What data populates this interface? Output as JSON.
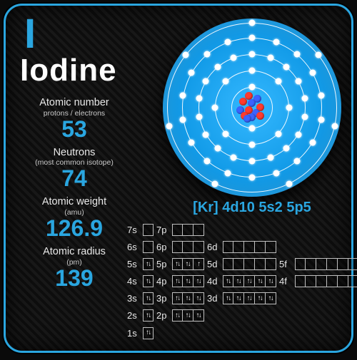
{
  "element": {
    "symbol": "I",
    "name": "Iodine",
    "electron_config_short": "[Kr] 4d10 5s2 5p5"
  },
  "colors": {
    "accent": "#2aa6e0",
    "text": "#ffffff",
    "disc_inner": "#34b8ff",
    "disc_outer": "#0e7fc0",
    "nucleon_a": "#ff3b2f",
    "nucleon_b": "#3b63ff"
  },
  "stats": [
    {
      "label": "Atomic number",
      "sub": "protons / electrons",
      "value": "53"
    },
    {
      "label": "Neutrons",
      "sub": "(most common isotope)",
      "value": "74"
    },
    {
      "label": "Atomic weight",
      "sub": "(amu)",
      "value": "126.9"
    },
    {
      "label": "Atomic radius",
      "sub": "(pm)",
      "value": "139"
    }
  ],
  "atom": {
    "shells": [
      {
        "radius": 29,
        "electrons": 2
      },
      {
        "radius": 52,
        "electrons": 8
      },
      {
        "radius": 75,
        "electrons": 18
      },
      {
        "radius": 98,
        "electrons": 18
      },
      {
        "radius": 119,
        "electrons": 7
      }
    ]
  },
  "orbitals": [
    [
      {
        "l": "7s",
        "n": 1,
        "f": 0
      },
      {
        "l": "7p",
        "n": 3,
        "f": 0
      }
    ],
    [
      {
        "l": "6s",
        "n": 1,
        "f": 0
      },
      {
        "l": "6p",
        "n": 3,
        "f": 0
      },
      {
        "l": "6d",
        "n": 5,
        "f": 0
      }
    ],
    [
      {
        "l": "5s",
        "n": 1,
        "f": 2
      },
      {
        "l": "5p",
        "n": 3,
        "f": 5
      },
      {
        "l": "5d",
        "n": 5,
        "f": 0
      },
      {
        "l": "5f",
        "n": 7,
        "f": 0
      }
    ],
    [
      {
        "l": "4s",
        "n": 1,
        "f": 2
      },
      {
        "l": "4p",
        "n": 3,
        "f": 6
      },
      {
        "l": "4d",
        "n": 5,
        "f": 10
      },
      {
        "l": "4f",
        "n": 7,
        "f": 0
      }
    ],
    [
      {
        "l": "3s",
        "n": 1,
        "f": 2
      },
      {
        "l": "3p",
        "n": 3,
        "f": 6
      },
      {
        "l": "3d",
        "n": 5,
        "f": 10
      }
    ],
    [
      {
        "l": "2s",
        "n": 1,
        "f": 2
      },
      {
        "l": "2p",
        "n": 3,
        "f": 6
      }
    ],
    [
      {
        "l": "1s",
        "n": 1,
        "f": 2
      }
    ]
  ]
}
